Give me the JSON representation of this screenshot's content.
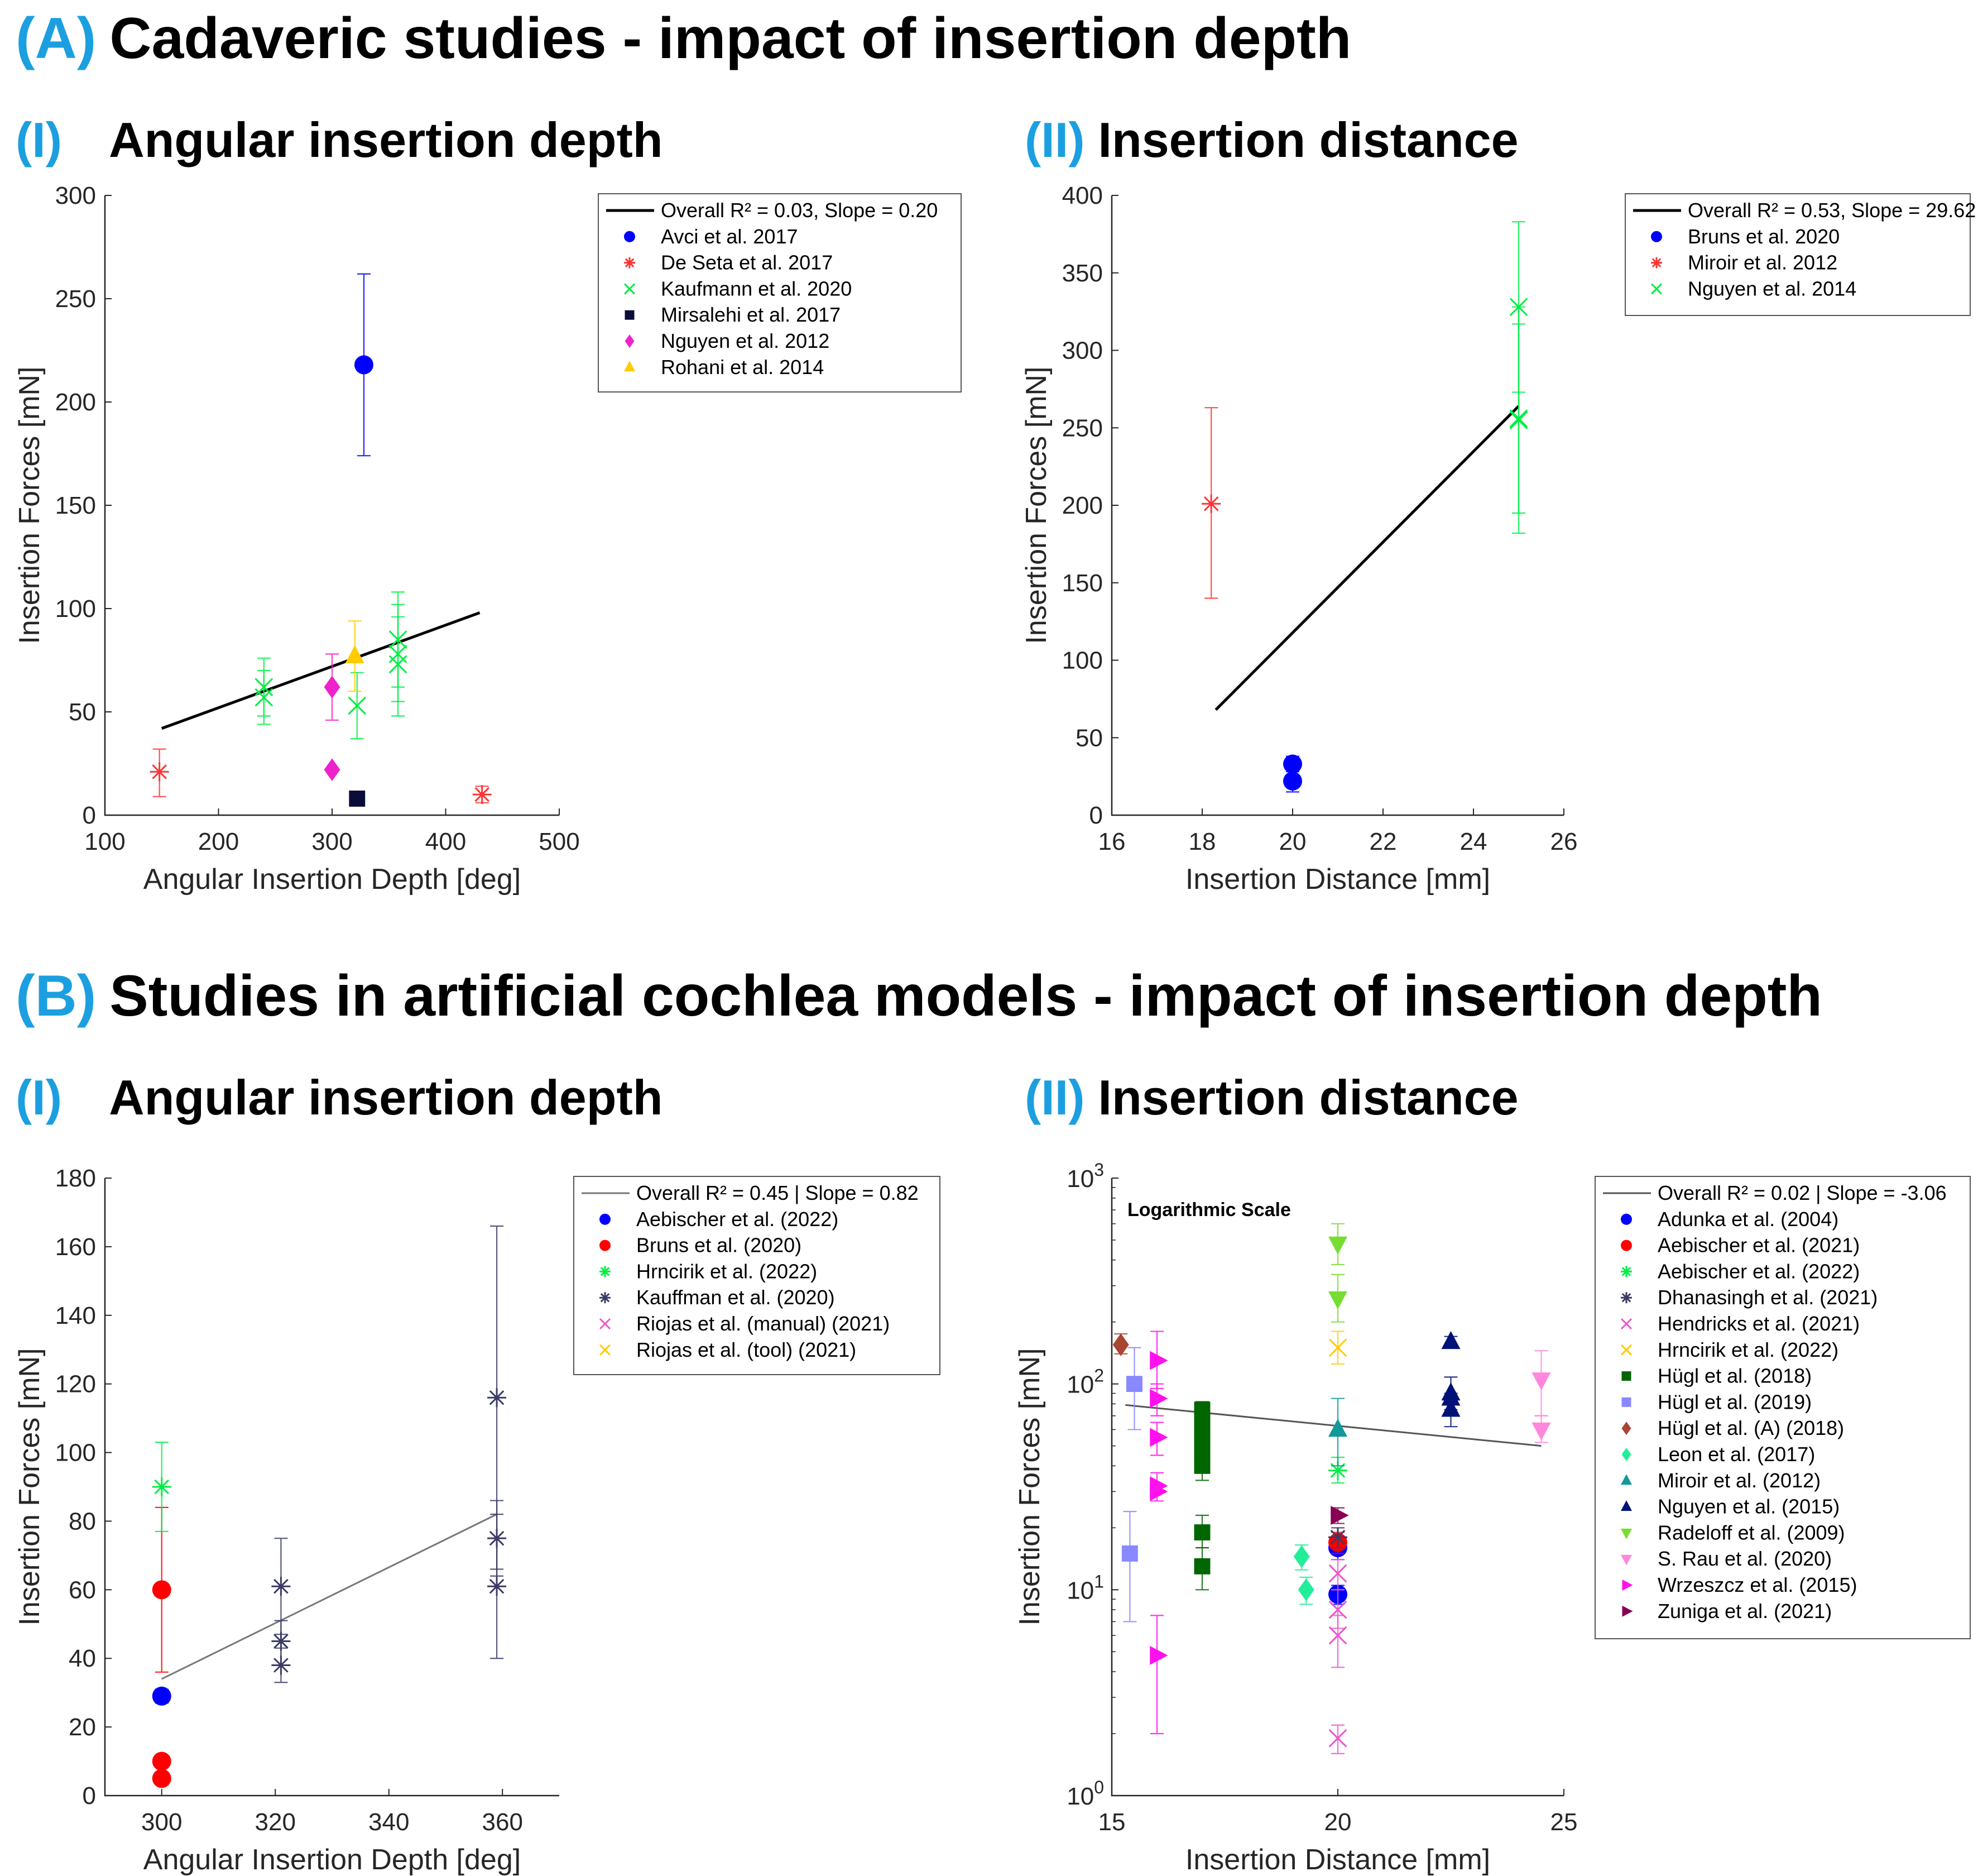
{
  "sections": {
    "a": {
      "tag": "(A)",
      "title": "Cadaveric studies - impact of insertion depth"
    },
    "b": {
      "tag": "(B)",
      "title": "Studies in artificial cochlea models - impact of insertion depth"
    }
  },
  "subtitles": {
    "a1": {
      "tag": "(I)",
      "title": "Angular insertion depth"
    },
    "a2": {
      "tag": "(II)",
      "title": "Insertion distance"
    },
    "b1": {
      "tag": "(I)",
      "title": "Angular insertion depth"
    },
    "b2": {
      "tag": "(II)",
      "title": "Insertion distance"
    }
  },
  "colors": {
    "accent": "#1c9fe0"
  },
  "chart_data": [
    {
      "id": "A-I",
      "type": "scatter",
      "xlabel": "Angular Insertion Depth [deg]",
      "ylabel": "Insertion Forces [mN]",
      "xlim": [
        100,
        500
      ],
      "ylim": [
        0,
        300
      ],
      "xticks": [
        100,
        200,
        300,
        400,
        500
      ],
      "yticks": [
        0,
        50,
        100,
        150,
        200,
        250,
        300
      ],
      "legend_position": "top-right",
      "fit": {
        "label": "Overall R² = 0.03, Slope = 0.20",
        "x": [
          150,
          430
        ],
        "y": [
          42,
          98
        ],
        "color": "#000000",
        "width": 5
      },
      "series": [
        {
          "name": "Avci et al. 2017",
          "color": "#0000ff",
          "marker": "circle",
          "points": [
            {
              "x": 328,
              "y": 218,
              "lo": 174,
              "hi": 262
            }
          ]
        },
        {
          "name": "De Seta et al. 2017",
          "color": "#ff3333",
          "marker": "asterisk",
          "points": [
            {
              "x": 148,
              "y": 21,
              "lo": 9,
              "hi": 32
            },
            {
              "x": 432,
              "y": 10,
              "lo": 6,
              "hi": 14
            }
          ]
        },
        {
          "name": "Kaufmann et al. 2020",
          "color": "#00ee44",
          "marker": "x",
          "points": [
            {
              "x": 240,
              "y": 62,
              "lo": 48,
              "hi": 76
            },
            {
              "x": 240,
              "y": 57,
              "lo": 44,
              "hi": 70
            },
            {
              "x": 322,
              "y": 53,
              "lo": 37,
              "hi": 69
            },
            {
              "x": 358,
              "y": 85,
              "lo": 62,
              "hi": 108
            },
            {
              "x": 358,
              "y": 78,
              "lo": 55,
              "hi": 102
            },
            {
              "x": 358,
              "y": 73,
              "lo": 48,
              "hi": 96
            }
          ]
        },
        {
          "name": "Mirsalehi et al. 2017",
          "color": "#0c0c3a",
          "marker": "square",
          "points": [
            {
              "x": 322,
              "y": 8
            }
          ]
        },
        {
          "name": "Nguyen et al. 2012",
          "color": "#ee22cc",
          "marker": "diamond",
          "points": [
            {
              "x": 300,
              "y": 62,
              "lo": 46,
              "hi": 78
            },
            {
              "x": 300,
              "y": 22
            }
          ]
        },
        {
          "name": "Rohani et al. 2014",
          "color": "#ffcc00",
          "marker": "triangle-up",
          "points": [
            {
              "x": 320,
              "y": 77,
              "lo": 60,
              "hi": 94
            }
          ]
        }
      ]
    },
    {
      "id": "A-II",
      "type": "scatter",
      "xlabel": "Insertion Distance [mm]",
      "ylabel": "Insertion Forces [mN]",
      "xlim": [
        16,
        26
      ],
      "ylim": [
        0,
        400
      ],
      "xticks": [
        16,
        18,
        20,
        22,
        24,
        26
      ],
      "yticks": [
        0,
        50,
        100,
        150,
        200,
        250,
        300,
        350,
        400
      ],
      "legend_position": "top-right",
      "fit": {
        "label": "Overall R² = 0.53, Slope = 29.62",
        "x": [
          18.3,
          25
        ],
        "y": [
          68,
          264
        ],
        "color": "#000000",
        "width": 5
      },
      "series": [
        {
          "name": "Bruns et al. 2020",
          "color": "#0000ff",
          "marker": "circle",
          "points": [
            {
              "x": 20,
              "y": 33,
              "lo": 28,
              "hi": 38
            },
            {
              "x": 20,
              "y": 22,
              "lo": 15,
              "hi": 29
            }
          ]
        },
        {
          "name": "Miroir et al. 2012",
          "color": "#ff3333",
          "marker": "asterisk",
          "points": [
            {
              "x": 18.2,
              "y": 201,
              "lo": 140,
              "hi": 263
            }
          ]
        },
        {
          "name": "Nguyen et al. 2014",
          "color": "#00ee44",
          "marker": "x",
          "points": [
            {
              "x": 25,
              "y": 328,
              "lo": 273,
              "hi": 383
            },
            {
              "x": 25,
              "y": 256,
              "lo": 195,
              "hi": 317
            },
            {
              "x": 25,
              "y": 255,
              "lo": 182,
              "hi": 328
            }
          ]
        }
      ]
    },
    {
      "id": "B-I",
      "type": "scatter",
      "xlabel": "Angular Insertion Depth [deg]",
      "ylabel": "Insertion Forces [mN]",
      "xlim": [
        290,
        370
      ],
      "ylim": [
        0,
        180
      ],
      "xticks": [
        300,
        320,
        340,
        360
      ],
      "yticks": [
        0,
        20,
        40,
        60,
        80,
        100,
        120,
        140,
        160,
        180
      ],
      "legend_position": "top-right",
      "fit": {
        "label": "Overall R² = 0.45 | Slope = 0.82",
        "x": [
          300,
          359
        ],
        "y": [
          34,
          82
        ],
        "color": "#777777",
        "width": 3
      },
      "series": [
        {
          "name": "Aebischer et al. (2022)",
          "color": "#0000ff",
          "marker": "circle",
          "points": [
            {
              "x": 300,
              "y": 29,
              "lo": 27,
              "hi": 31
            }
          ]
        },
        {
          "name": "Bruns et al. (2020)",
          "color": "#ff0000",
          "marker": "circle",
          "points": [
            {
              "x": 300,
              "y": 60,
              "lo": 36,
              "hi": 84
            },
            {
              "x": 300,
              "y": 10
            },
            {
              "x": 300,
              "y": 5
            }
          ]
        },
        {
          "name": "Hrncirik et al. (2022)",
          "color": "#00ee44",
          "marker": "asterisk",
          "points": [
            {
              "x": 300,
              "y": 90,
              "lo": 77,
              "hi": 103
            }
          ]
        },
        {
          "name": "Kauffman et al. (2020)",
          "color": "#3a3a66",
          "marker": "asterisk",
          "points": [
            {
              "x": 321,
              "y": 61,
              "lo": 47,
              "hi": 75
            },
            {
              "x": 321,
              "y": 45,
              "lo": 38,
              "hi": 51
            },
            {
              "x": 321,
              "y": 38,
              "lo": 33,
              "hi": 43
            },
            {
              "x": 359,
              "y": 116,
              "lo": 66,
              "hi": 166
            },
            {
              "x": 359,
              "y": 75,
              "lo": 64,
              "hi": 86
            },
            {
              "x": 359,
              "y": 61,
              "lo": 40,
              "hi": 82
            }
          ]
        },
        {
          "name": "Riojas et al. (manual) (2021)",
          "color": "#ee55cc",
          "marker": "x",
          "points": []
        },
        {
          "name": "Riojas et al. (tool) (2021)",
          "color": "#ffcc00",
          "marker": "x",
          "points": []
        }
      ]
    },
    {
      "id": "B-II",
      "type": "scatter",
      "yscale": "log",
      "annotation": "Logarithmic Scale",
      "xlabel": "Insertion Distance [mm]",
      "ylabel": "Insertion Forces [mN]",
      "xlim": [
        15,
        25
      ],
      "ylim": [
        1,
        1000
      ],
      "xticks": [
        15,
        20,
        25
      ],
      "ytick_base": "10",
      "ytick_exps": [
        "0",
        "1",
        "2",
        "3"
      ],
      "legend_position": "top-right",
      "fit": {
        "label": "Overall R² = 0.02 | Slope = -3.06",
        "x": [
          15.3,
          24.5
        ],
        "y": [
          79,
          50
        ],
        "color": "#555555",
        "width": 3
      },
      "series": [
        {
          "name": "Adunka et al. (2004)",
          "color": "#0000ff",
          "marker": "circle",
          "points": [
            {
              "x": 20,
              "y": 16,
              "lo": 14,
              "hi": 18
            },
            {
              "x": 20,
              "y": 9.5,
              "lo": 8.5,
              "hi": 10.5
            }
          ]
        },
        {
          "name": "Aebischer et al. (2021)",
          "color": "#ff0000",
          "marker": "circle",
          "points": [
            {
              "x": 20,
              "y": 17,
              "lo": 15,
              "hi": 19
            }
          ]
        },
        {
          "name": "Aebischer et al. (2022)",
          "color": "#00ee44",
          "marker": "asterisk",
          "points": [
            {
              "x": 20,
              "y": 38,
              "lo": 33,
              "hi": 44
            }
          ]
        },
        {
          "name": "Dhanasingh et al. (2021)",
          "color": "#3a3a66",
          "marker": "asterisk",
          "points": [
            {
              "x": 20,
              "y": 18,
              "lo": 16,
              "hi": 20
            }
          ]
        },
        {
          "name": "Hendricks et al. (2021)",
          "color": "#ee55cc",
          "marker": "x",
          "points": [
            {
              "x": 20,
              "y": 12,
              "lo": 10,
              "hi": 14
            },
            {
              "x": 20,
              "y": 8,
              "lo": 6.5,
              "hi": 10
            },
            {
              "x": 20,
              "y": 6,
              "lo": 4.2,
              "hi": 7.5
            },
            {
              "x": 20,
              "y": 1.9,
              "lo": 1.6,
              "hi": 2.2
            }
          ]
        },
        {
          "name": "Hrncirik et al. (2022)",
          "color": "#ffcc00",
          "marker": "x",
          "points": [
            {
              "x": 20,
              "y": 150,
              "lo": 125,
              "hi": 180
            }
          ]
        },
        {
          "name": "Hügl et al. (2018)",
          "color": "#006600",
          "marker": "square",
          "points": [
            {
              "x": 17,
              "y": 75,
              "lo": 70,
              "hi": 82
            },
            {
              "x": 17,
              "y": 67
            },
            {
              "x": 17,
              "y": 60
            },
            {
              "x": 17,
              "y": 53
            },
            {
              "x": 17,
              "y": 46
            },
            {
              "x": 17,
              "y": 40,
              "lo": 34,
              "hi": 46
            },
            {
              "x": 17,
              "y": 19,
              "lo": 16,
              "hi": 23
            },
            {
              "x": 17,
              "y": 13,
              "lo": 10,
              "hi": 16
            }
          ]
        },
        {
          "name": "Hügl et al. (2019)",
          "color": "#8888ff",
          "marker": "square",
          "points": [
            {
              "x": 15.5,
              "y": 100,
              "lo": 60,
              "hi": 150
            },
            {
              "x": 15.4,
              "y": 15,
              "lo": 7,
              "hi": 24
            }
          ]
        },
        {
          "name": "Hügl et al. (A) (2018)",
          "color": "#aa4433",
          "marker": "diamond",
          "points": [
            {
              "x": 15.2,
              "y": 155,
              "lo": 140,
              "hi": 175
            }
          ]
        },
        {
          "name": "Leon et al. (2017)",
          "color": "#22ee99",
          "marker": "diamond",
          "points": [
            {
              "x": 19.2,
              "y": 14.5,
              "lo": 12.5,
              "hi": 16.5
            },
            {
              "x": 19.3,
              "y": 10,
              "lo": 8.5,
              "hi": 11.5
            }
          ]
        },
        {
          "name": "Miroir et al. (2012)",
          "color": "#119999",
          "marker": "triangle-up",
          "points": [
            {
              "x": 20,
              "y": 60,
              "lo": 40,
              "hi": 85
            }
          ]
        },
        {
          "name": "Nguyen et al. (2015)",
          "color": "#001177",
          "marker": "triangle-up",
          "points": [
            {
              "x": 22.5,
              "y": 160,
              "lo": 150,
              "hi": 170
            },
            {
              "x": 22.5,
              "y": 90,
              "lo": 75,
              "hi": 108
            },
            {
              "x": 22.5,
              "y": 85
            },
            {
              "x": 22.5,
              "y": 75,
              "lo": 62,
              "hi": 90
            }
          ]
        },
        {
          "name": "Radeloff et al. (2009)",
          "color": "#77dd33",
          "marker": "triangle-down",
          "points": [
            {
              "x": 20,
              "y": 480,
              "lo": 380,
              "hi": 600
            },
            {
              "x": 20,
              "y": 260,
              "lo": 200,
              "hi": 340
            }
          ]
        },
        {
          "name": "S. Rau et al. (2020)",
          "color": "#ff88dd",
          "marker": "triangle-down",
          "points": [
            {
              "x": 24.5,
              "y": 105,
              "lo": 70,
              "hi": 145
            },
            {
              "x": 24.5,
              "y": 60,
              "lo": 52,
              "hi": 70
            }
          ]
        },
        {
          "name": "Wrzeszcz et al. (2015)",
          "color": "#ff11ee",
          "marker": "triangle-right",
          "points": [
            {
              "x": 16,
              "y": 130,
              "lo": 95,
              "hi": 180
            },
            {
              "x": 16,
              "y": 85,
              "lo": 70,
              "hi": 100
            },
            {
              "x": 16,
              "y": 55,
              "lo": 45,
              "hi": 65
            },
            {
              "x": 16,
              "y": 32,
              "lo": 27,
              "hi": 37
            },
            {
              "x": 16,
              "y": 30
            },
            {
              "x": 16,
              "y": 4.8,
              "lo": 2,
              "hi": 7.5
            }
          ]
        },
        {
          "name": "Zuniga et al. (2021)",
          "color": "#880055",
          "marker": "triangle-right",
          "points": [
            {
              "x": 20,
              "y": 23,
              "lo": 21,
              "hi": 25
            }
          ]
        }
      ]
    }
  ]
}
